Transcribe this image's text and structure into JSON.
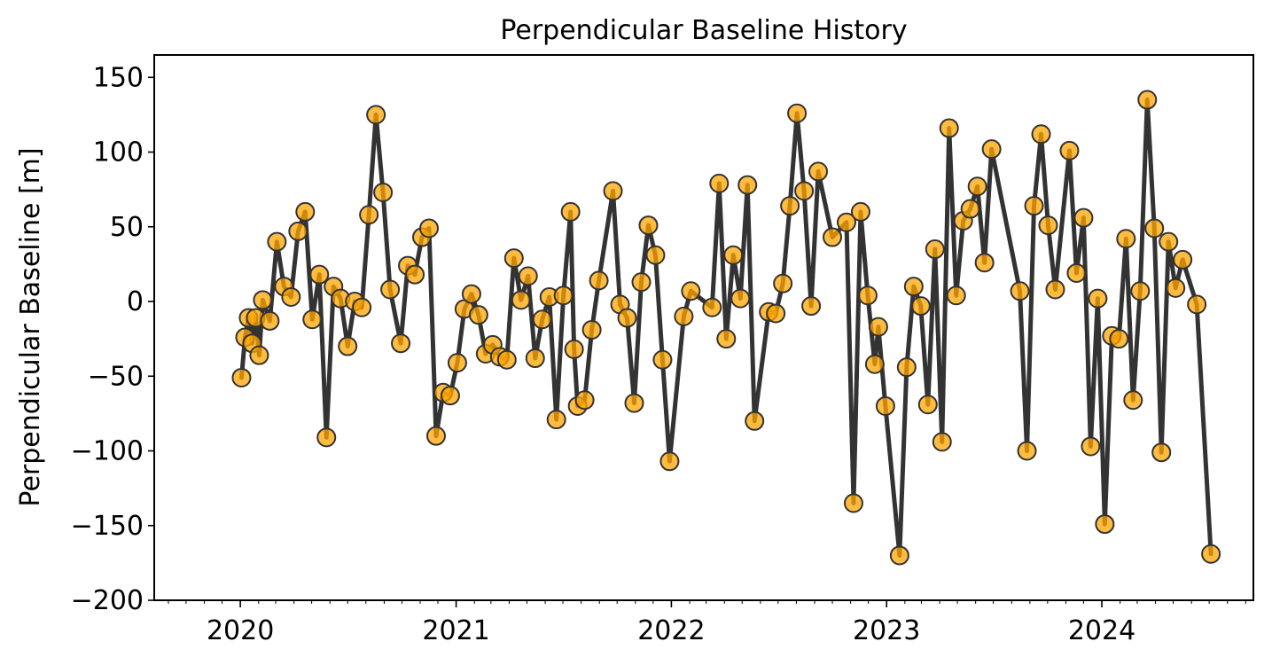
{
  "chart_data": {
    "type": "line",
    "title": "Perpendicular Baseline History",
    "xlabel": "",
    "ylabel": "Perpendicular Baseline [m]",
    "x_axis_type": "date",
    "xlim": [
      "2019-08-08",
      "2024-09-14"
    ],
    "ylim": [
      -200,
      165
    ],
    "y_ticks": [
      -200,
      -150,
      -100,
      -50,
      0,
      50,
      100,
      150
    ],
    "y_tick_labels": [
      "−200",
      "−150",
      "−100",
      "−50",
      "0",
      "50",
      "100",
      "150"
    ],
    "x_ticks": [
      "2020-01-01",
      "2021-01-01",
      "2022-01-01",
      "2023-01-01",
      "2024-01-01"
    ],
    "x_tick_labels": [
      "2020",
      "2021",
      "2022",
      "2023",
      "2024"
    ],
    "x_minor_ticks": "monthly",
    "grid": false,
    "legend": "none",
    "colors": {
      "line": "#333333",
      "marker_face": "#ffa500",
      "marker_edge": "#333333"
    },
    "series": [
      {
        "marker": "circle",
        "points": [
          {
            "x": "2020-01-03",
            "y": -51
          },
          {
            "x": "2020-01-09",
            "y": -24
          },
          {
            "x": "2020-01-15",
            "y": -11
          },
          {
            "x": "2020-01-21",
            "y": -28
          },
          {
            "x": "2020-01-27",
            "y": -11
          },
          {
            "x": "2020-02-02",
            "y": -36
          },
          {
            "x": "2020-02-08",
            "y": 1
          },
          {
            "x": "2020-02-20",
            "y": -13
          },
          {
            "x": "2020-03-03",
            "y": 40
          },
          {
            "x": "2020-03-15",
            "y": 10
          },
          {
            "x": "2020-03-27",
            "y": 3
          },
          {
            "x": "2020-04-08",
            "y": 47
          },
          {
            "x": "2020-04-20",
            "y": 60
          },
          {
            "x": "2020-05-02",
            "y": -12
          },
          {
            "x": "2020-05-14",
            "y": 18
          },
          {
            "x": "2020-05-26",
            "y": -91
          },
          {
            "x": "2020-06-07",
            "y": 10
          },
          {
            "x": "2020-06-19",
            "y": 2
          },
          {
            "x": "2020-07-01",
            "y": -30
          },
          {
            "x": "2020-07-13",
            "y": 0
          },
          {
            "x": "2020-07-25",
            "y": -4
          },
          {
            "x": "2020-08-06",
            "y": 58
          },
          {
            "x": "2020-08-18",
            "y": 125
          },
          {
            "x": "2020-08-30",
            "y": 73
          },
          {
            "x": "2020-09-11",
            "y": 8
          },
          {
            "x": "2020-09-29",
            "y": -28
          },
          {
            "x": "2020-10-11",
            "y": 24
          },
          {
            "x": "2020-10-23",
            "y": 18
          },
          {
            "x": "2020-11-04",
            "y": 43
          },
          {
            "x": "2020-11-16",
            "y": 49
          },
          {
            "x": "2020-11-28",
            "y": -90
          },
          {
            "x": "2020-12-10",
            "y": -61
          },
          {
            "x": "2020-12-22",
            "y": -63
          },
          {
            "x": "2021-01-03",
            "y": -41
          },
          {
            "x": "2021-01-15",
            "y": -5
          },
          {
            "x": "2021-01-27",
            "y": 5
          },
          {
            "x": "2021-02-08",
            "y": -9
          },
          {
            "x": "2021-02-20",
            "y": -35
          },
          {
            "x": "2021-03-04",
            "y": -29
          },
          {
            "x": "2021-03-16",
            "y": -37
          },
          {
            "x": "2021-03-28",
            "y": -39
          },
          {
            "x": "2021-04-09",
            "y": 29
          },
          {
            "x": "2021-04-21",
            "y": 1
          },
          {
            "x": "2021-05-03",
            "y": 17
          },
          {
            "x": "2021-05-15",
            "y": -38
          },
          {
            "x": "2021-05-27",
            "y": -12
          },
          {
            "x": "2021-06-08",
            "y": 3
          },
          {
            "x": "2021-06-20",
            "y": -79
          },
          {
            "x": "2021-07-02",
            "y": 4
          },
          {
            "x": "2021-07-14",
            "y": 60
          },
          {
            "x": "2021-07-20",
            "y": -32
          },
          {
            "x": "2021-07-26",
            "y": -70
          },
          {
            "x": "2021-08-07",
            "y": -66
          },
          {
            "x": "2021-08-19",
            "y": -19
          },
          {
            "x": "2021-08-31",
            "y": 14
          },
          {
            "x": "2021-09-24",
            "y": 74
          },
          {
            "x": "2021-10-06",
            "y": -2
          },
          {
            "x": "2021-10-18",
            "y": -11
          },
          {
            "x": "2021-10-30",
            "y": -68
          },
          {
            "x": "2021-11-11",
            "y": 13
          },
          {
            "x": "2021-11-23",
            "y": 51
          },
          {
            "x": "2021-12-05",
            "y": 31
          },
          {
            "x": "2021-12-17",
            "y": -39
          },
          {
            "x": "2021-12-29",
            "y": -107
          },
          {
            "x": "2022-01-22",
            "y": -10
          },
          {
            "x": "2022-02-03",
            "y": 7
          },
          {
            "x": "2022-03-11",
            "y": -4
          },
          {
            "x": "2022-03-23",
            "y": 79
          },
          {
            "x": "2022-04-04",
            "y": -25
          },
          {
            "x": "2022-04-16",
            "y": 31
          },
          {
            "x": "2022-04-28",
            "y": 2
          },
          {
            "x": "2022-05-10",
            "y": 78
          },
          {
            "x": "2022-05-22",
            "y": -80
          },
          {
            "x": "2022-06-15",
            "y": -7
          },
          {
            "x": "2022-06-27",
            "y": -8
          },
          {
            "x": "2022-07-09",
            "y": 12
          },
          {
            "x": "2022-07-21",
            "y": 64
          },
          {
            "x": "2022-08-02",
            "y": 126
          },
          {
            "x": "2022-08-14",
            "y": 74
          },
          {
            "x": "2022-08-26",
            "y": -3
          },
          {
            "x": "2022-09-07",
            "y": 87
          },
          {
            "x": "2022-10-01",
            "y": 43
          },
          {
            "x": "2022-10-25",
            "y": 53
          },
          {
            "x": "2022-11-06",
            "y": -135
          },
          {
            "x": "2022-11-18",
            "y": 60
          },
          {
            "x": "2022-11-30",
            "y": 4
          },
          {
            "x": "2022-12-12",
            "y": -42
          },
          {
            "x": "2022-12-18",
            "y": -17
          },
          {
            "x": "2022-12-30",
            "y": -70
          },
          {
            "x": "2023-01-23",
            "y": -170
          },
          {
            "x": "2023-02-04",
            "y": -44
          },
          {
            "x": "2023-02-16",
            "y": 10
          },
          {
            "x": "2023-02-28",
            "y": -3
          },
          {
            "x": "2023-03-12",
            "y": -69
          },
          {
            "x": "2023-03-24",
            "y": 35
          },
          {
            "x": "2023-04-05",
            "y": -94
          },
          {
            "x": "2023-04-17",
            "y": 116
          },
          {
            "x": "2023-04-29",
            "y": 4
          },
          {
            "x": "2023-05-11",
            "y": 54
          },
          {
            "x": "2023-05-23",
            "y": 62
          },
          {
            "x": "2023-06-04",
            "y": 77
          },
          {
            "x": "2023-06-16",
            "y": 26
          },
          {
            "x": "2023-06-28",
            "y": 102
          },
          {
            "x": "2023-08-15",
            "y": 7
          },
          {
            "x": "2023-08-27",
            "y": -100
          },
          {
            "x": "2023-09-08",
            "y": 64
          },
          {
            "x": "2023-09-20",
            "y": 112
          },
          {
            "x": "2023-10-02",
            "y": 51
          },
          {
            "x": "2023-10-14",
            "y": 8
          },
          {
            "x": "2023-11-07",
            "y": 101
          },
          {
            "x": "2023-11-19",
            "y": 19
          },
          {
            "x": "2023-12-01",
            "y": 56
          },
          {
            "x": "2023-12-13",
            "y": -97
          },
          {
            "x": "2023-12-25",
            "y": 2
          },
          {
            "x": "2024-01-06",
            "y": -149
          },
          {
            "x": "2024-01-18",
            "y": -23
          },
          {
            "x": "2024-01-30",
            "y": -25
          },
          {
            "x": "2024-02-11",
            "y": 42
          },
          {
            "x": "2024-02-23",
            "y": -66
          },
          {
            "x": "2024-03-06",
            "y": 7
          },
          {
            "x": "2024-03-18",
            "y": 135
          },
          {
            "x": "2024-03-30",
            "y": 49
          },
          {
            "x": "2024-04-11",
            "y": -101
          },
          {
            "x": "2024-04-23",
            "y": 40
          },
          {
            "x": "2024-05-05",
            "y": 9
          },
          {
            "x": "2024-05-17",
            "y": 28
          },
          {
            "x": "2024-06-10",
            "y": -2
          },
          {
            "x": "2024-07-04",
            "y": -169
          }
        ]
      }
    ]
  }
}
